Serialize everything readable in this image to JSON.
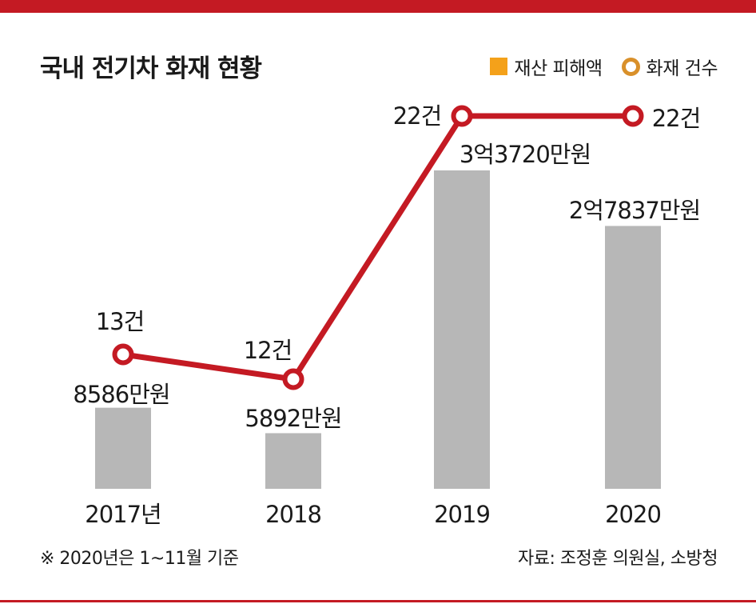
{
  "title": "국내 전기차 화재 현황",
  "note": "※ 2020년은 1~11월 기준",
  "source": "자료: 조정훈 의원실, 소방청",
  "colors": {
    "accent": "#c41a23",
    "bar": "#b7b7b7",
    "legend_bar": "#f4a11a",
    "legend_line": "#d9902a"
  },
  "chart_data": {
    "type": "bar",
    "categories": [
      "2017년",
      "2018",
      "2019",
      "2020"
    ],
    "series": [
      {
        "name": "재산 피해액",
        "type": "bar",
        "values": [
          8586,
          5892,
          33720,
          27837
        ],
        "unit": "만원",
        "labels": [
          "8586만원",
          "5892만원",
          "3억3720만원",
          "2억7837만원"
        ]
      },
      {
        "name": "화재 건수",
        "type": "line",
        "values": [
          13,
          12,
          22,
          22
        ],
        "unit": "건",
        "labels": [
          "13건",
          "12건",
          "22건",
          "22건"
        ]
      }
    ],
    "title": "국내 전기차 화재 현황",
    "xlabel": "",
    "ylabel": "",
    "grid": false,
    "legend_position": "top-right"
  }
}
